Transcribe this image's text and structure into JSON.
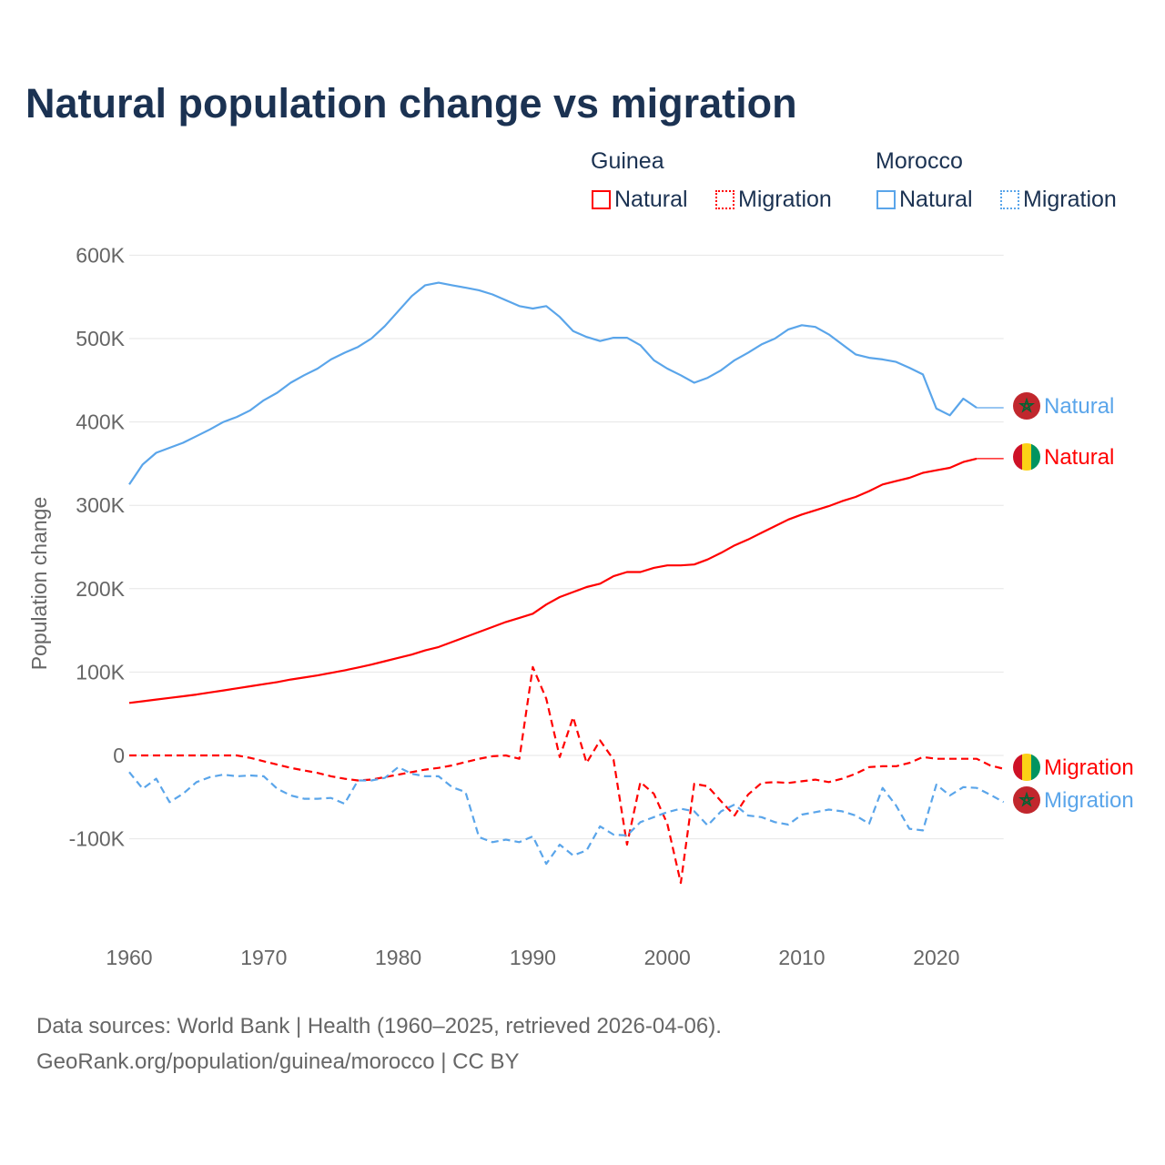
{
  "chart_data": {
    "type": "line",
    "title": "Natural population change vs migration",
    "xlabel": "",
    "ylabel": "Population change",
    "xlim": [
      1960,
      2025
    ],
    "ylim": [
      -200000,
      600000
    ],
    "y_ticks": [
      {
        "v": -100000,
        "label": "-100K"
      },
      {
        "v": 0,
        "label": "0"
      },
      {
        "v": 100000,
        "label": "100K"
      },
      {
        "v": 200000,
        "label": "200K"
      },
      {
        "v": 300000,
        "label": "300K"
      },
      {
        "v": 400000,
        "label": "400K"
      },
      {
        "v": 500000,
        "label": "500K"
      },
      {
        "v": 600000,
        "label": "600K"
      }
    ],
    "x_ticks": [
      {
        "v": 1960,
        "label": "1960"
      },
      {
        "v": 1970,
        "label": "1970"
      },
      {
        "v": 1980,
        "label": "1980"
      },
      {
        "v": 1990,
        "label": "1990"
      },
      {
        "v": 2000,
        "label": "2000"
      },
      {
        "v": 2010,
        "label": "2010"
      },
      {
        "v": 2020,
        "label": "2020"
      }
    ],
    "grid": true,
    "legend_position": "top-right",
    "legend": {
      "groups": [
        {
          "country": "Guinea",
          "items": [
            {
              "label": "Natural",
              "style": "solid"
            },
            {
              "label": "Migration",
              "style": "dotted"
            }
          ]
        },
        {
          "country": "Morocco",
          "items": [
            {
              "label": "Natural",
              "style": "solid"
            },
            {
              "label": "Migration",
              "style": "dotted"
            }
          ]
        }
      ]
    },
    "series": [
      {
        "name": "Morocco Natural",
        "country": "Morocco",
        "kind": "Natural",
        "color": "#5aa5ea",
        "dash": false,
        "start_year": 1960,
        "end_label": "Natural",
        "extend_to": 2025,
        "values": [
          325,
          349,
          363,
          369,
          375,
          383,
          391,
          400,
          406,
          414,
          426,
          435,
          447,
          456,
          464,
          475,
          483,
          490,
          500,
          515,
          533,
          551,
          564,
          567,
          564,
          561,
          558,
          553,
          546,
          539,
          536,
          539,
          526,
          509,
          502,
          497,
          501,
          501,
          492,
          474,
          464,
          456,
          447,
          453,
          462,
          474,
          483,
          493,
          500,
          511,
          516,
          514,
          505,
          493,
          481,
          477,
          475,
          472,
          465,
          457,
          416,
          408,
          428,
          417
        ]
      },
      {
        "name": "Guinea Natural",
        "country": "Guinea",
        "kind": "Natural",
        "color": "#ff0000",
        "dash": false,
        "start_year": 1960,
        "end_label": "Natural",
        "extend_to": 2025,
        "values": [
          63,
          65,
          67,
          69,
          71,
          73,
          75.5,
          78,
          80.5,
          83,
          85.5,
          88,
          91,
          93.5,
          96,
          99,
          102,
          105.5,
          109,
          113,
          117,
          121,
          126,
          130,
          136,
          142,
          148,
          154,
          160,
          165,
          170,
          181,
          190,
          196,
          202,
          206,
          215,
          220,
          220,
          225,
          228,
          228,
          229,
          235,
          243,
          252,
          259,
          267,
          275,
          283,
          289,
          294,
          299,
          305,
          310,
          317,
          325,
          329,
          333,
          339,
          342,
          345,
          352,
          356
        ]
      },
      {
        "name": "Guinea Migration",
        "country": "Guinea",
        "kind": "Migration",
        "color": "#ff0000",
        "dash": true,
        "start_year": 1960,
        "end_label": "Migration",
        "values": [
          0,
          0,
          0,
          0,
          0,
          0,
          0,
          0,
          0,
          -3,
          -7,
          -11,
          -15,
          -18,
          -21,
          -25,
          -28,
          -30,
          -29,
          -26,
          -23,
          -20,
          -17,
          -15,
          -12,
          -8,
          -4,
          -1,
          0,
          -4,
          106,
          68,
          -2,
          46,
          -9,
          18,
          -5,
          -107,
          -32,
          -46,
          -82,
          -153,
          -34,
          -37,
          -55,
          -72,
          -47,
          -33,
          -32,
          -33,
          -31,
          -29,
          -32,
          -28,
          -22,
          -14,
          -13,
          -13,
          -9,
          -2,
          -4,
          -4,
          -4,
          -4,
          -12,
          -16
        ]
      },
      {
        "name": "Morocco Migration",
        "country": "Morocco",
        "kind": "Migration",
        "color": "#5aa5ea",
        "dash": true,
        "start_year": 1960,
        "end_label": "Migration",
        "values": [
          -20,
          -40,
          -28,
          -56,
          -46,
          -32,
          -26,
          -23,
          -25,
          -24,
          -25,
          -40,
          -48,
          -52,
          -52,
          -51,
          -58,
          -30,
          -30,
          -27,
          -14,
          -22,
          -25,
          -25,
          -38,
          -44,
          -98,
          -104,
          -101,
          -104,
          -97,
          -130,
          -107,
          -120,
          -114,
          -85,
          -95,
          -96,
          -80,
          -74,
          -68,
          -64,
          -67,
          -84,
          -67,
          -59,
          -72,
          -74,
          -80,
          -83,
          -71,
          -68,
          -65,
          -67,
          -72,
          -82,
          -39,
          -60,
          -88,
          -90,
          -35,
          -48,
          -38,
          -39,
          -47,
          -56
        ]
      }
    ],
    "value_unit": "thousands"
  },
  "footer": {
    "line1": "Data sources: World Bank | Health (1960–2025, retrieved 2026-04-06).",
    "line2": "GeoRank.org/population/guinea/morocco | CC BY"
  }
}
